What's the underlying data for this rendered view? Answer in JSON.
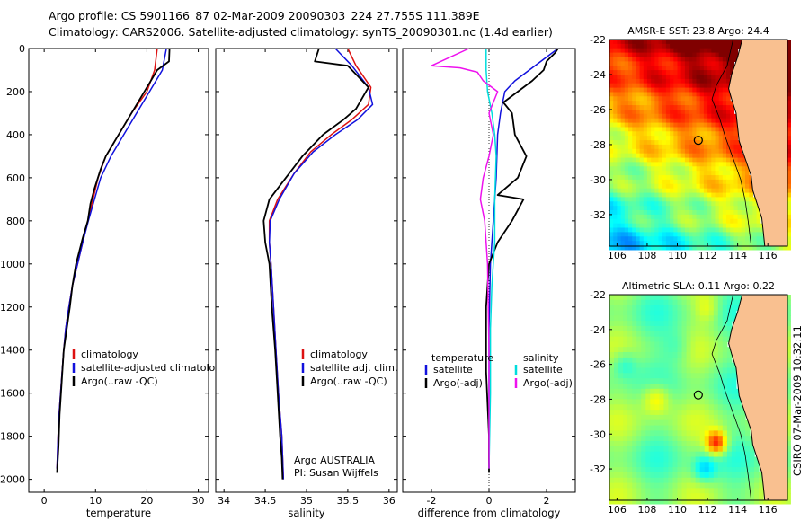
{
  "header": {
    "line1": "Argo profile: CS 5901166_87 02-Mar-2009 20090303_224 27.755S 111.389E",
    "line2": "Climatology: CARS2006. Satellite-adjusted climatology: synTS_20090301.nc (1.4d earlier)"
  },
  "footer": {
    "stamp": "CSIRO 07-Mar-2009 10:32:11"
  },
  "colors": {
    "climatology": "#dd1111",
    "satellite": "#1111dd",
    "argo": "#000000",
    "salinity_sat": "#00dddd",
    "salinity_argo": "#ee11ee",
    "land": "#f9c090"
  },
  "chart_data": [
    {
      "type": "line",
      "panel": "temperature",
      "xlabel": "temperature",
      "ylabel": "",
      "xlim": [
        -3,
        32
      ],
      "ylim": [
        2060,
        0
      ],
      "xticks": [
        0,
        10,
        20,
        30
      ],
      "yticks": [
        0,
        200,
        400,
        600,
        800,
        1000,
        1200,
        1400,
        1600,
        1800,
        2000
      ],
      "legend": [
        "climatology",
        "satellite-adjusted climatology",
        "Argo(..raw -QC)"
      ],
      "series": [
        {
          "name": "climatology",
          "color": "#dd1111",
          "x": [
            22.0,
            21.5,
            20.0,
            17.0,
            14.5,
            12.0,
            10.5,
            9.5,
            8.5,
            7.5,
            6.5,
            5.5,
            4.8,
            4.2,
            3.8,
            3.5,
            3.2,
            2.9,
            2.7,
            2.5
          ],
          "y": [
            0,
            100,
            200,
            300,
            400,
            500,
            600,
            700,
            800,
            900,
            1000,
            1100,
            1200,
            1300,
            1400,
            1500,
            1600,
            1700,
            1800,
            1950
          ]
        },
        {
          "name": "satellite-adjusted climatology",
          "color": "#1111dd",
          "x": [
            23.8,
            23.0,
            20.5,
            18.0,
            15.5,
            13.0,
            11.0,
            9.8,
            8.6,
            7.5,
            6.5,
            5.5,
            4.8,
            4.2,
            3.8,
            3.5,
            3.2,
            2.9,
            2.7,
            2.5
          ],
          "y": [
            0,
            100,
            200,
            300,
            400,
            500,
            600,
            700,
            800,
            900,
            1000,
            1100,
            1200,
            1300,
            1400,
            1500,
            1600,
            1700,
            1800,
            1950
          ]
        },
        {
          "name": "Argo(..raw -QC)",
          "color": "#000000",
          "x": [
            24.4,
            24.3,
            22.0,
            20.5,
            17.0,
            15.5,
            14.0,
            12.0,
            11.0,
            9.8,
            9.0,
            8.5,
            7.5,
            6.2,
            5.5,
            5.0,
            4.4,
            3.8,
            3.4,
            3.0,
            2.8,
            2.5
          ],
          "y": [
            0,
            60,
            100,
            160,
            300,
            360,
            420,
            500,
            560,
            650,
            720,
            800,
            880,
            1000,
            1100,
            1200,
            1300,
            1400,
            1550,
            1700,
            1850,
            1970
          ]
        }
      ]
    },
    {
      "type": "line",
      "panel": "salinity",
      "xlabel": "salinity",
      "ylabel": "",
      "xlim": [
        33.9,
        36.1
      ],
      "ylim": [
        2060,
        0
      ],
      "xticks": [
        34,
        34.5,
        35,
        35.5,
        36
      ],
      "legend": [
        "climatology",
        "satellite adj. clim.",
        "Argo(..raw -QC)"
      ],
      "annotation": [
        "Argo AUSTRALIA",
        "PI: Susan Wijffels"
      ],
      "series": [
        {
          "name": "climatology",
          "color": "#dd1111",
          "x": [
            35.5,
            35.6,
            35.78,
            35.75,
            35.55,
            35.3,
            35.05,
            34.85,
            34.65,
            34.55,
            34.55,
            34.57,
            34.6,
            34.63,
            34.66,
            34.68,
            34.7,
            34.71,
            34.72
          ],
          "y": [
            0,
            80,
            180,
            260,
            330,
            400,
            480,
            580,
            700,
            800,
            900,
            1000,
            1200,
            1400,
            1600,
            1700,
            1800,
            1900,
            2000
          ]
        },
        {
          "name": "satellite adj. clim.",
          "color": "#1111dd",
          "x": [
            35.35,
            35.55,
            35.75,
            35.8,
            35.62,
            35.35,
            35.08,
            34.85,
            34.67,
            34.56,
            34.55,
            34.57,
            34.6,
            34.63,
            34.66,
            34.68,
            34.7,
            34.71,
            34.72
          ],
          "y": [
            0,
            80,
            180,
            260,
            330,
            400,
            480,
            580,
            700,
            800,
            900,
            1000,
            1200,
            1400,
            1600,
            1700,
            1800,
            1900,
            2000
          ]
        },
        {
          "name": "Argo(..raw -QC)",
          "color": "#000000",
          "x": [
            35.15,
            35.1,
            35.5,
            35.6,
            35.75,
            35.6,
            35.45,
            35.2,
            34.95,
            34.75,
            34.55,
            34.48,
            34.5,
            34.55,
            34.58,
            34.62,
            34.65,
            34.68,
            34.7,
            34.71
          ],
          "y": [
            0,
            60,
            80,
            120,
            180,
            280,
            330,
            400,
            500,
            600,
            700,
            800,
            900,
            1000,
            1200,
            1400,
            1600,
            1800,
            1900,
            2000
          ]
        }
      ]
    },
    {
      "type": "line",
      "panel": "difference",
      "xlabel": "difference from climatology",
      "ylabel": "",
      "xlim": [
        -3,
        3
      ],
      "ylim": [
        2060,
        0
      ],
      "xticks": [
        -2,
        0,
        2
      ],
      "legend_left_title": "temperature",
      "legend_right_title": "salinity",
      "legend_left": [
        "satellite",
        "Argo(-adj)"
      ],
      "legend_right": [
        "satellite",
        "Argo(-adj)"
      ],
      "series": [
        {
          "name": "satellite",
          "color": "#1111dd",
          "group": "temperature",
          "x": [
            2.4,
            1.8,
            1.4,
            0.9,
            0.55,
            0.4,
            0.3,
            0.25,
            0.15,
            0.05,
            0.0,
            0.0,
            0.0
          ],
          "y": [
            0,
            60,
            100,
            150,
            200,
            300,
            400,
            600,
            800,
            1000,
            1300,
            1600,
            1950
          ]
        },
        {
          "name": "Argo(-adj)",
          "color": "#000000",
          "group": "temperature",
          "x": [
            2.4,
            2.3,
            2.0,
            1.9,
            1.5,
            1.0,
            0.5,
            0.8,
            0.9,
            1.3,
            1.0,
            0.3,
            1.2,
            0.8,
            0.3,
            0.0,
            -0.1,
            -0.1,
            0.0,
            0.0
          ],
          "y": [
            0,
            20,
            60,
            100,
            150,
            200,
            250,
            300,
            400,
            500,
            600,
            680,
            700,
            800,
            900,
            1000,
            1200,
            1500,
            1800,
            1970
          ]
        },
        {
          "name": "satellite",
          "color": "#00dddd",
          "group": "salinity",
          "x": [
            -0.1,
            -0.1,
            -0.05,
            0.1,
            0.2,
            0.25,
            0.2,
            0.2,
            0.1,
            0.05,
            0.05,
            0.0
          ],
          "y": [
            0,
            100,
            200,
            300,
            400,
            500,
            700,
            900,
            1100,
            1300,
            1600,
            1950
          ]
        },
        {
          "name": "Argo(-adj)",
          "color": "#ee11ee",
          "group": "salinity",
          "x": [
            -0.7,
            -2.0,
            -1.0,
            -0.4,
            -0.2,
            0.3,
            0.0,
            0.15,
            0.0,
            -0.2,
            -0.3,
            -0.15,
            -0.05,
            0.0,
            0.0
          ],
          "y": [
            0,
            80,
            90,
            110,
            150,
            200,
            300,
            400,
            500,
            600,
            700,
            800,
            1000,
            1400,
            1950
          ]
        }
      ]
    },
    {
      "type": "heatmap",
      "panel": "sst_map",
      "title": "AMSR-E SST: 23.8 Argo: 24.4",
      "xlim": [
        105.5,
        117.3
      ],
      "ylim": [
        -33.8,
        -22
      ],
      "xticks": [
        106,
        108,
        110,
        112,
        114,
        116
      ],
      "yticks": [
        -22,
        -24,
        -26,
        -28,
        -30,
        -32
      ],
      "marker": {
        "lon": 111.389,
        "lat": -27.755
      }
    },
    {
      "type": "heatmap",
      "panel": "sla_map",
      "title": "Altimetric SLA: 0.11 Argo: 0.22",
      "xlim": [
        105.5,
        117.3
      ],
      "ylim": [
        -33.8,
        -22
      ],
      "xticks": [
        106,
        108,
        110,
        112,
        114,
        116
      ],
      "yticks": [
        -22,
        -24,
        -26,
        -28,
        -30,
        -32
      ],
      "marker": {
        "lon": 111.389,
        "lat": -27.755
      }
    }
  ]
}
